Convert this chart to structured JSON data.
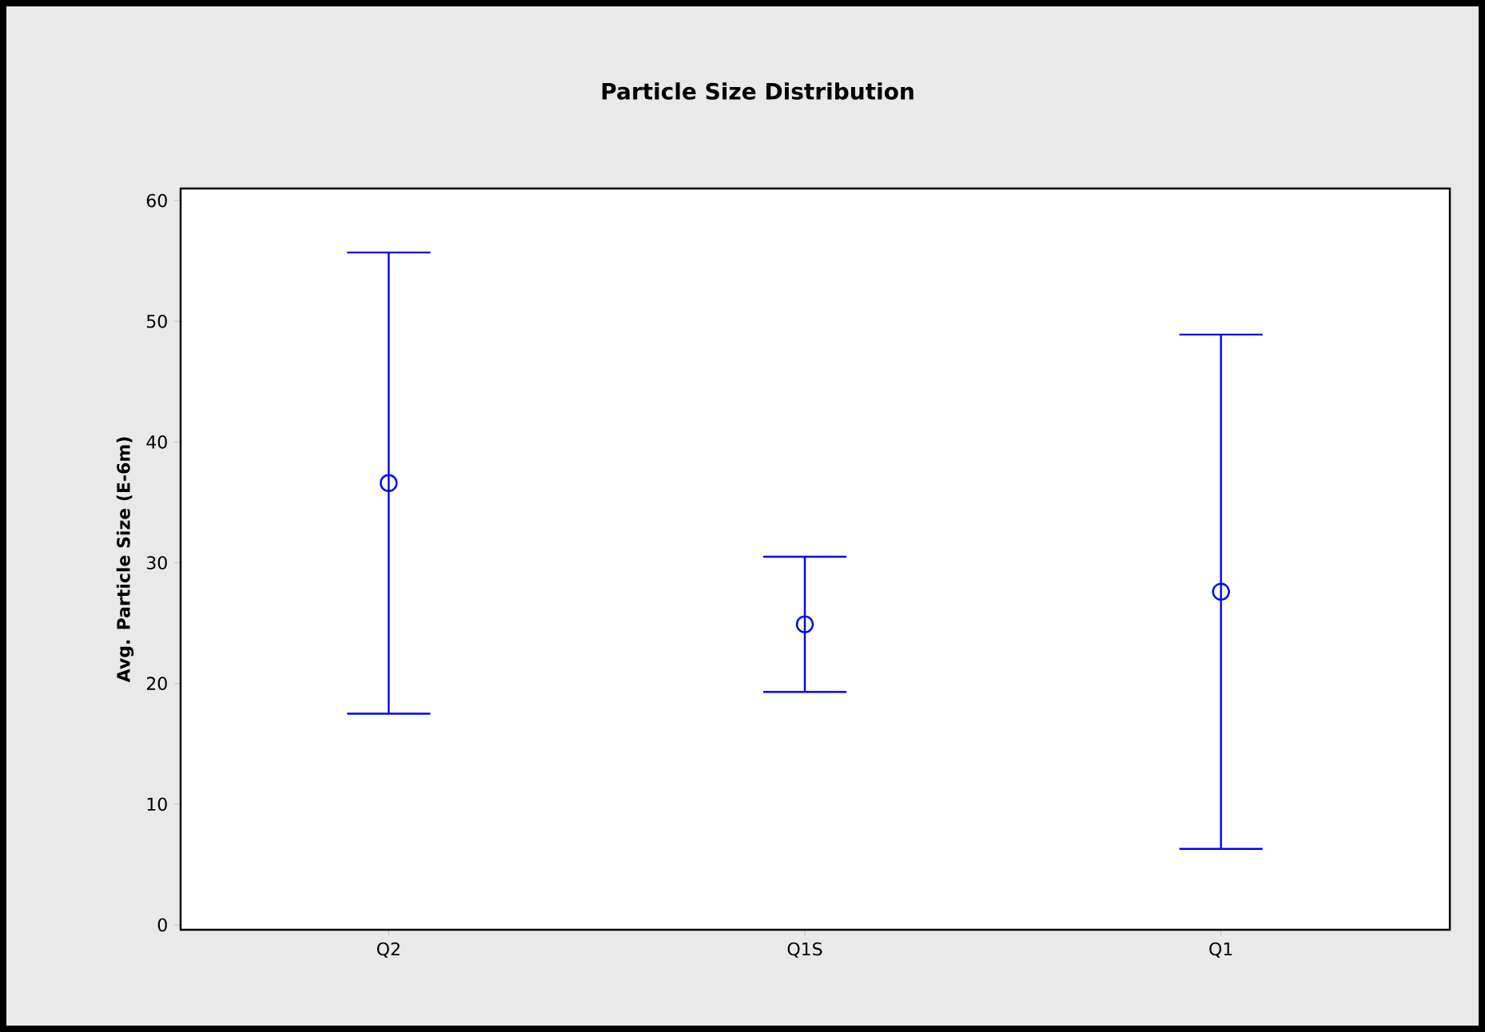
{
  "chart_data": {
    "type": "scatter",
    "title": "Particle Size Distribution",
    "ylabel": "Avg. Particle Size (E-6m)",
    "categories": [
      "Q2",
      "Q1S",
      "Q1"
    ],
    "color": "#0000ff",
    "values": [
      36.6,
      24.9,
      27.6
    ],
    "errors": [
      19.1,
      5.6,
      21.3
    ],
    "marker": "circle",
    "grid": false,
    "ylim": [
      -0.4,
      61
    ],
    "yticks": [
      0,
      10,
      20,
      30,
      40,
      50,
      60
    ]
  }
}
